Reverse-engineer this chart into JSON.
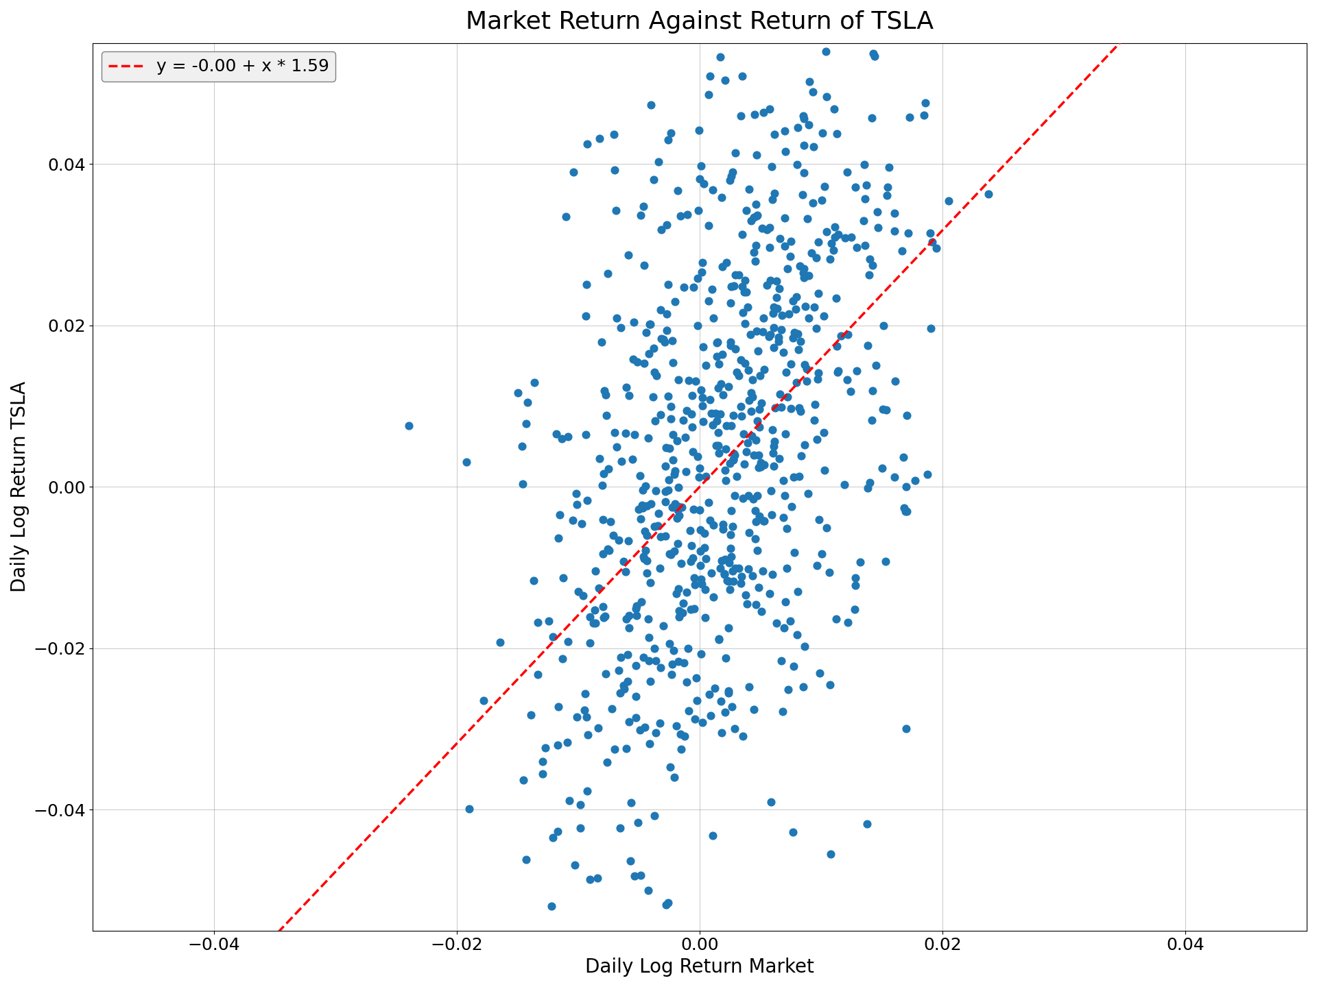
{
  "title": "Market Return Against Return of TSLA",
  "xlabel": "Daily Log Return Market",
  "ylabel": "Daily Log Return TSLA",
  "legend_label": "y = -0.00 + x * 1.59",
  "intercept": -0.0,
  "slope": 1.59,
  "xlim": [
    -0.05,
    0.05
  ],
  "ylim": [
    -0.055,
    0.055
  ],
  "xticks": [
    -0.04,
    -0.02,
    0.0,
    0.02,
    0.04
  ],
  "yticks": [
    -0.04,
    -0.02,
    0.0,
    0.02,
    0.04
  ],
  "scatter_color": "#1f77b4",
  "line_color": "red",
  "marker_size": 60,
  "alpha": 1.0,
  "n_points": 750,
  "market_std": 0.008,
  "noise_std": 0.022,
  "seed": 42,
  "title_fontsize": 26,
  "label_fontsize": 20,
  "tick_fontsize": 18,
  "legend_fontsize": 18,
  "figsize": [
    19.2,
    14.4
  ],
  "dpi": 100
}
